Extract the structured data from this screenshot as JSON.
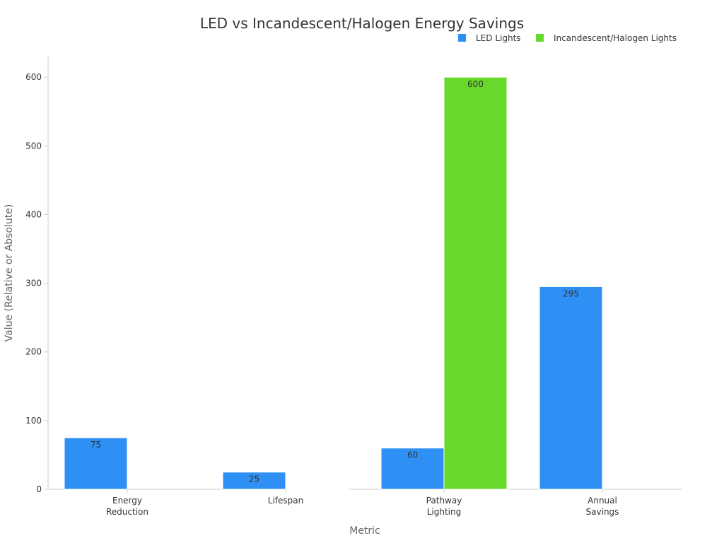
{
  "chart_data": {
    "type": "bar",
    "title": "LED vs Incandescent/Halogen Energy Savings",
    "xlabel": "Metric",
    "ylabel": "Value (Relative or Absolute)",
    "categories": [
      [
        "Energy",
        "Reduction"
      ],
      [
        "Lifespan"
      ],
      [
        "Pathway",
        "Lighting"
      ],
      [
        "Annual",
        "Savings"
      ]
    ],
    "series": [
      {
        "name": "LED Lights",
        "color": "#2E90F5",
        "values": [
          75,
          25,
          60,
          295
        ]
      },
      {
        "name": "Incandescent/Halogen Lights",
        "color": "#66D92A",
        "values": [
          0,
          1,
          600,
          0
        ]
      }
    ],
    "data_labels": [
      [
        "75",
        "25",
        "60",
        "295"
      ],
      [
        "",
        "",
        "600",
        ""
      ]
    ],
    "ylim": [
      0,
      630
    ],
    "yticks": [
      0,
      100,
      200,
      300,
      400,
      500,
      600
    ],
    "grid": false,
    "legend_position": "top-right"
  }
}
